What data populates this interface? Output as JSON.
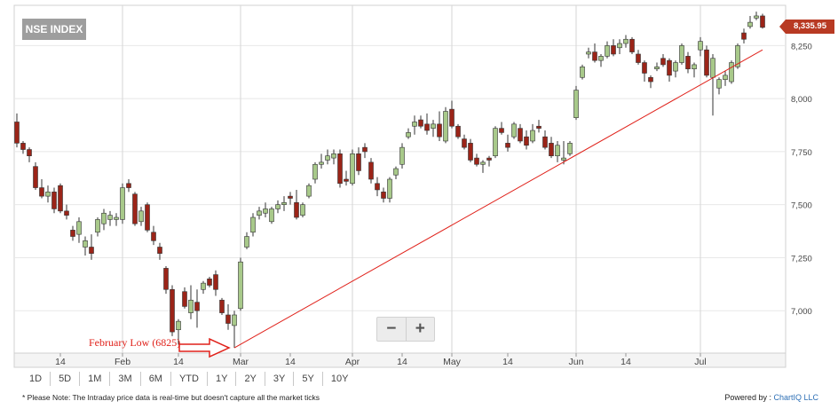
{
  "title": "NSE INDEX",
  "last_price": "8,335.95",
  "zoom": {
    "minus": "−",
    "plus": "+"
  },
  "ranges": [
    "1D",
    "5D",
    "1M",
    "3M",
    "6M",
    "YTD",
    "1Y",
    "2Y",
    "3Y",
    "5Y",
    "10Y"
  ],
  "footer": {
    "note": "* Please Note: The Intraday price data is real-time but doesn't capture all the market ticks",
    "powered_by": "Powered by :",
    "brand": "ChartIQ LLC"
  },
  "annotation": "February Low (6825)",
  "colors": {
    "up": "#a8c98a",
    "down": "#9b2418",
    "trendline": "#e0211a",
    "grid": "#e8e8e8"
  },
  "chart_data": {
    "type": "candlestick",
    "title": "NSE INDEX",
    "ylim": [
      6800,
      8440
    ],
    "y_ticks": [
      7000,
      7250,
      7500,
      7750,
      8000,
      8250
    ],
    "y_tick_labels": [
      "7,000",
      "7,250",
      "7,500",
      "7,750",
      "8,000",
      "8,250"
    ],
    "x_ticks": [
      {
        "label": "14",
        "i": 7
      },
      {
        "label": "Feb",
        "i": 17
      },
      {
        "label": "14",
        "i": 26
      },
      {
        "label": "Mar",
        "i": 36
      },
      {
        "label": "14",
        "i": 44
      },
      {
        "label": "Apr",
        "i": 54
      },
      {
        "label": "14",
        "i": 62
      },
      {
        "label": "May",
        "i": 70
      },
      {
        "label": "14",
        "i": 79
      },
      {
        "label": "Jun",
        "i": 90
      },
      {
        "label": "14",
        "i": 98
      },
      {
        "label": "Jul",
        "i": 110
      }
    ],
    "grid_vertical_at": [
      17,
      36,
      54,
      70,
      90,
      110
    ],
    "grid": true,
    "candles": [
      [
        7890,
        7930,
        7770,
        7790
      ],
      [
        7790,
        7800,
        7740,
        7760
      ],
      [
        7760,
        7770,
        7700,
        7730
      ],
      [
        7680,
        7700,
        7570,
        7580
      ],
      [
        7580,
        7620,
        7530,
        7540
      ],
      [
        7540,
        7590,
        7510,
        7560
      ],
      [
        7560,
        7580,
        7460,
        7480
      ],
      [
        7590,
        7600,
        7460,
        7470
      ],
      [
        7470,
        7500,
        7430,
        7450
      ],
      [
        7380,
        7400,
        7330,
        7350
      ],
      [
        7360,
        7440,
        7320,
        7420
      ],
      [
        7300,
        7350,
        7260,
        7330
      ],
      [
        7300,
        7360,
        7240,
        7270
      ],
      [
        7370,
        7440,
        7350,
        7430
      ],
      [
        7410,
        7480,
        7380,
        7460
      ],
      [
        7430,
        7470,
        7400,
        7450
      ],
      [
        7430,
        7460,
        7400,
        7440
      ],
      [
        7430,
        7600,
        7410,
        7580
      ],
      [
        7600,
        7620,
        7560,
        7580
      ],
      [
        7550,
        7560,
        7400,
        7410
      ],
      [
        7420,
        7490,
        7400,
        7470
      ],
      [
        7500,
        7510,
        7370,
        7380
      ],
      [
        7370,
        7400,
        7310,
        7330
      ],
      [
        7300,
        7320,
        7240,
        7270
      ],
      [
        7200,
        7210,
        7080,
        7100
      ],
      [
        7100,
        7120,
        6880,
        6900
      ],
      [
        6910,
        6960,
        6840,
        6950
      ],
      [
        7090,
        7110,
        7010,
        7020
      ],
      [
        6990,
        7120,
        6960,
        7050
      ],
      [
        7040,
        7100,
        6920,
        7000
      ],
      [
        7100,
        7140,
        7080,
        7130
      ],
      [
        7150,
        7160,
        7110,
        7120
      ],
      [
        7170,
        7190,
        7070,
        7100
      ],
      [
        7050,
        7060,
        6980,
        6990
      ],
      [
        6980,
        7030,
        6910,
        6940
      ],
      [
        6930,
        7000,
        6825,
        6980
      ],
      [
        7010,
        7250,
        7000,
        7230
      ],
      [
        7300,
        7370,
        7290,
        7350
      ],
      [
        7370,
        7460,
        7350,
        7440
      ],
      [
        7450,
        7490,
        7430,
        7470
      ],
      [
        7460,
        7510,
        7440,
        7480
      ],
      [
        7420,
        7490,
        7410,
        7480
      ],
      [
        7480,
        7520,
        7460,
        7500
      ],
      [
        7500,
        7540,
        7470,
        7510
      ],
      [
        7540,
        7560,
        7500,
        7530
      ],
      [
        7510,
        7570,
        7430,
        7440
      ],
      [
        7450,
        7510,
        7440,
        7500
      ],
      [
        7540,
        7600,
        7530,
        7590
      ],
      [
        7620,
        7700,
        7600,
        7690
      ],
      [
        7690,
        7740,
        7670,
        7700
      ],
      [
        7710,
        7760,
        7690,
        7730
      ],
      [
        7720,
        7760,
        7690,
        7740
      ],
      [
        7740,
        7760,
        7580,
        7600
      ],
      [
        7620,
        7660,
        7590,
        7610
      ],
      [
        7600,
        7760,
        7590,
        7740
      ],
      [
        7740,
        7770,
        7640,
        7660
      ],
      [
        7770,
        7790,
        7720,
        7750
      ],
      [
        7700,
        7720,
        7600,
        7620
      ],
      [
        7600,
        7630,
        7540,
        7570
      ],
      [
        7560,
        7580,
        7510,
        7530
      ],
      [
        7530,
        7630,
        7510,
        7620
      ],
      [
        7640,
        7680,
        7620,
        7670
      ],
      [
        7690,
        7790,
        7670,
        7770
      ],
      [
        7820,
        7860,
        7810,
        7840
      ],
      [
        7870,
        7920,
        7830,
        7890
      ],
      [
        7900,
        7920,
        7860,
        7870
      ],
      [
        7880,
        7930,
        7830,
        7850
      ],
      [
        7860,
        7900,
        7820,
        7880
      ],
      [
        7880,
        7940,
        7800,
        7820
      ],
      [
        7800,
        7960,
        7790,
        7940
      ],
      [
        7950,
        7990,
        7860,
        7870
      ],
      [
        7870,
        7880,
        7810,
        7820
      ],
      [
        7810,
        7830,
        7760,
        7770
      ],
      [
        7790,
        7810,
        7700,
        7710
      ],
      [
        7720,
        7740,
        7680,
        7690
      ],
      [
        7690,
        7710,
        7650,
        7700
      ],
      [
        7720,
        7730,
        7680,
        7710
      ],
      [
        7730,
        7870,
        7720,
        7860
      ],
      [
        7860,
        7890,
        7830,
        7840
      ],
      [
        7790,
        7830,
        7750,
        7770
      ],
      [
        7820,
        7890,
        7810,
        7880
      ],
      [
        7860,
        7880,
        7790,
        7800
      ],
      [
        7820,
        7850,
        7760,
        7780
      ],
      [
        7800,
        7880,
        7790,
        7850
      ],
      [
        7870,
        7900,
        7840,
        7860
      ],
      [
        7820,
        7850,
        7760,
        7770
      ],
      [
        7790,
        7820,
        7720,
        7730
      ],
      [
        7730,
        7800,
        7700,
        7780
      ],
      [
        7710,
        7800,
        7690,
        7720
      ],
      [
        7740,
        7800,
        7730,
        7790
      ],
      [
        7910,
        8060,
        7900,
        8040
      ],
      [
        8100,
        8160,
        8090,
        8150
      ],
      [
        8210,
        8240,
        8190,
        8220
      ],
      [
        8220,
        8260,
        8170,
        8180
      ],
      [
        8180,
        8210,
        8150,
        8200
      ],
      [
        8200,
        8270,
        8190,
        8250
      ],
      [
        8250,
        8280,
        8200,
        8210
      ],
      [
        8240,
        8280,
        8210,
        8260
      ],
      [
        8260,
        8300,
        8240,
        8280
      ],
      [
        8280,
        8290,
        8210,
        8220
      ],
      [
        8210,
        8230,
        8160,
        8170
      ],
      [
        8170,
        8180,
        8080,
        8120
      ],
      [
        8100,
        8110,
        8050,
        8080
      ],
      [
        8140,
        8170,
        8130,
        8150
      ],
      [
        8190,
        8210,
        8150,
        8160
      ],
      [
        8180,
        8190,
        8080,
        8110
      ],
      [
        8130,
        8180,
        8100,
        8170
      ],
      [
        8170,
        8260,
        8160,
        8250
      ],
      [
        8200,
        8220,
        8120,
        8140
      ],
      [
        8140,
        8170,
        8100,
        8160
      ],
      [
        8230,
        8290,
        8200,
        8270
      ],
      [
        8230,
        8250,
        8100,
        8110
      ],
      [
        8100,
        8210,
        7920,
        8190
      ],
      [
        8050,
        8100,
        8020,
        8090
      ],
      [
        8090,
        8130,
        8060,
        8110
      ],
      [
        8080,
        8180,
        8070,
        8170
      ],
      [
        8150,
        8260,
        8140,
        8250
      ],
      [
        8310,
        8330,
        8260,
        8280
      ],
      [
        8340,
        8390,
        8330,
        8360
      ],
      [
        8380,
        8410,
        8370,
        8390
      ],
      [
        8390,
        8400,
        8330,
        8336
      ]
    ],
    "trendline": [
      [
        35,
        6825
      ],
      [
        120,
        8230
      ]
    ],
    "annotation": {
      "text": "February Low (6825)",
      "at_i": 35,
      "value": 6825
    }
  }
}
